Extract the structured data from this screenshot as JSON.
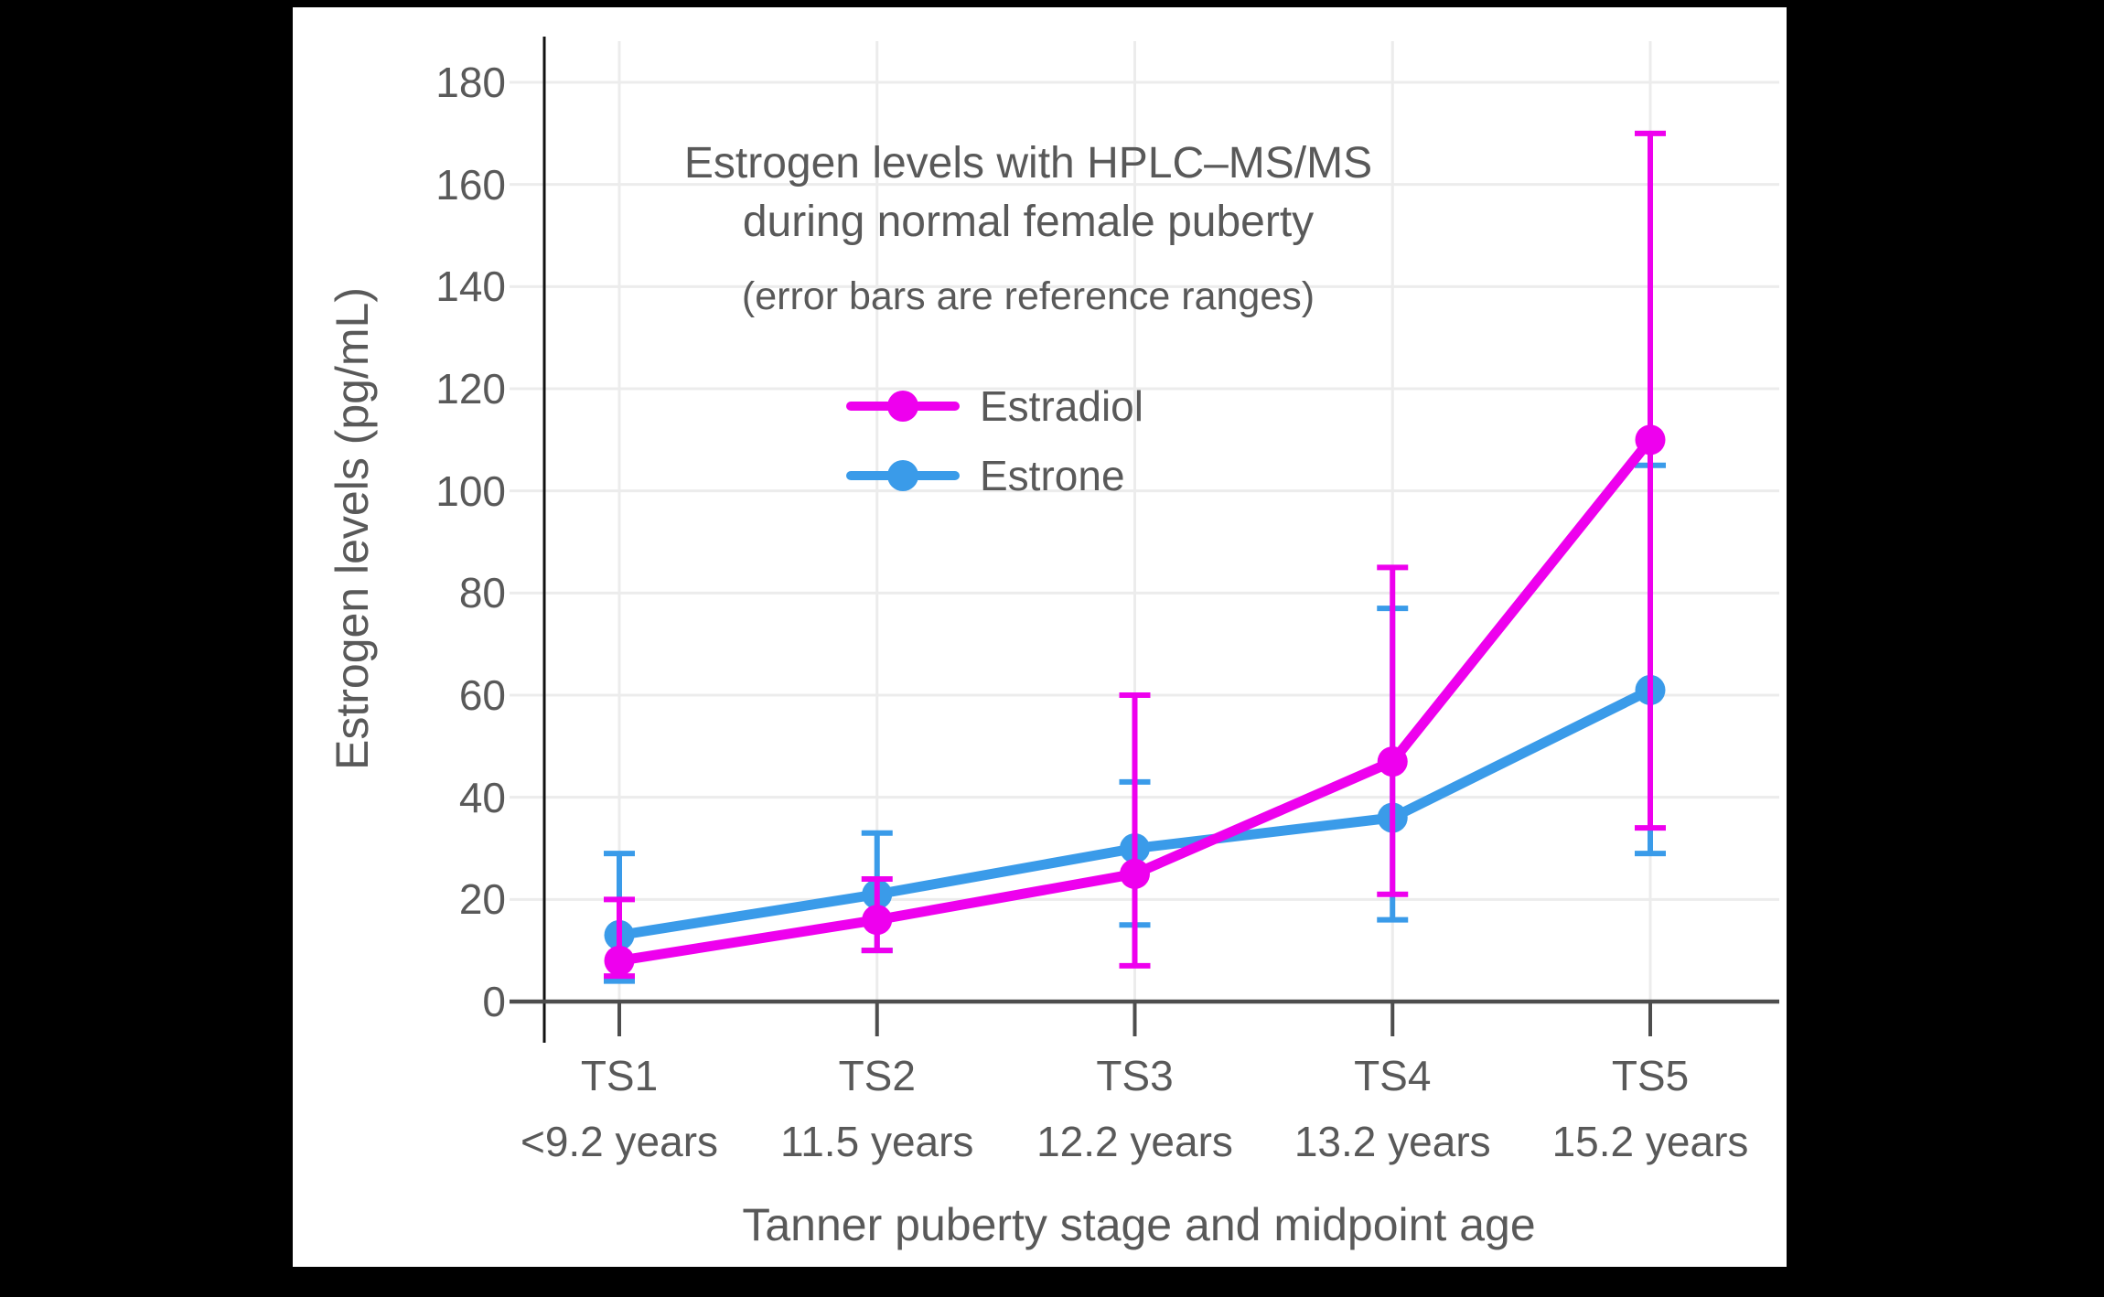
{
  "chart_data": {
    "type": "line",
    "title_line1": "Estrogen levels with HPLC–MS/MS",
    "title_line2": "during normal female puberty",
    "subtitle": "(error bars are reference ranges)",
    "xlabel": "Tanner puberty stage and midpoint age",
    "ylabel": "Estrogen levels (pg/mL)",
    "ylim": [
      0,
      180
    ],
    "ytick_step": 20,
    "grid": true,
    "legend_position": "inside-upper-left",
    "categories": [
      "TS1",
      "TS2",
      "TS3",
      "TS4",
      "TS5"
    ],
    "category_sublabels": [
      "<9.2 years",
      "11.5 years",
      "12.2 years",
      "13.2 years",
      "15.2 years"
    ],
    "series": [
      {
        "name": "Estradiol",
        "color": "#EE00EE",
        "values": [
          8,
          16,
          25,
          47,
          110
        ],
        "error_low": [
          5,
          10,
          7,
          21,
          34
        ],
        "error_high": [
          20,
          24,
          60,
          85,
          170
        ]
      },
      {
        "name": "Estrone",
        "color": "#3A9BE9",
        "values": [
          13,
          21,
          30,
          36,
          61
        ],
        "error_low": [
          4,
          10,
          15,
          16,
          29
        ],
        "error_high": [
          29,
          33,
          43,
          77,
          105
        ]
      }
    ]
  },
  "colors": {
    "canvas_background": "#000000",
    "panel_background": "#FFFFFF",
    "grid": "#ECECEC",
    "x_axis": "#4D4D4D",
    "y_axis": "#111111",
    "text": "#595959",
    "estradiol": "#EE00EE",
    "estrone": "#3A9BE9"
  }
}
